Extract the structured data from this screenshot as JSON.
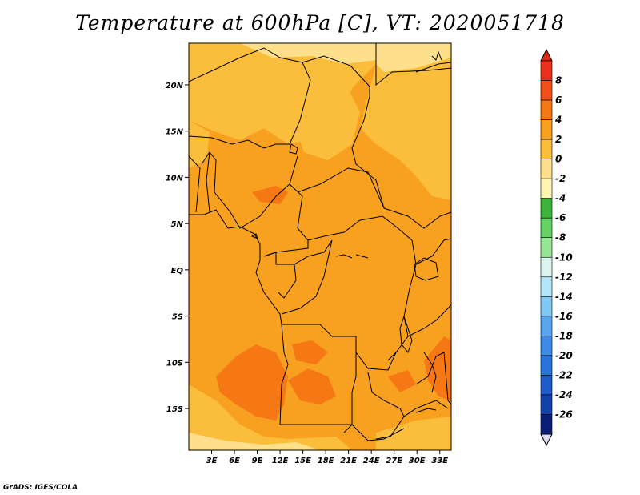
{
  "title": "Temperature at 600hPa [C], VT: 2020051718",
  "credit": "GrADS: IGES/COLA",
  "map": {
    "projection": "latlon",
    "lon_range": [
      0,
      34.5
    ],
    "lat_range": [
      -19.5,
      24.5
    ],
    "lon_ticks": [
      {
        "value": 3,
        "label": "3E"
      },
      {
        "value": 6,
        "label": "6E"
      },
      {
        "value": 9,
        "label": "9E"
      },
      {
        "value": 12,
        "label": "12E"
      },
      {
        "value": 15,
        "label": "15E"
      },
      {
        "value": 18,
        "label": "18E"
      },
      {
        "value": 21,
        "label": "21E"
      },
      {
        "value": 24,
        "label": "24E"
      },
      {
        "value": 27,
        "label": "27E"
      },
      {
        "value": 30,
        "label": "30E"
      },
      {
        "value": 33,
        "label": "33E"
      }
    ],
    "lat_ticks": [
      {
        "value": 20,
        "label": "20N"
      },
      {
        "value": 15,
        "label": "15N"
      },
      {
        "value": 10,
        "label": "10N"
      },
      {
        "value": 5,
        "label": "5N"
      },
      {
        "value": 0,
        "label": "EQ"
      },
      {
        "value": -5,
        "label": "5S"
      },
      {
        "value": -10,
        "label": "10S"
      },
      {
        "value": -15,
        "label": "15S"
      }
    ]
  },
  "colorbar": {
    "levels": [
      {
        "label": "8",
        "color": "#e8321e"
      },
      {
        "label": "6",
        "color": "#f0501a"
      },
      {
        "label": "4",
        "color": "#f57814"
      },
      {
        "label": "2",
        "color": "#f8a020"
      },
      {
        "label": "0",
        "color": "#fbbe3c"
      },
      {
        "label": "-2",
        "color": "#fee08c"
      },
      {
        "label": "-4",
        "color": "#fdf5b4"
      },
      {
        "label": "-6",
        "color": "#3cb43c"
      },
      {
        "label": "-8",
        "color": "#64d264"
      },
      {
        "label": "-10",
        "color": "#96e696"
      },
      {
        "label": "-12",
        "color": "#dcf5f0"
      },
      {
        "label": "-14",
        "color": "#b4e6fa"
      },
      {
        "label": "-16",
        "color": "#82c8f5"
      },
      {
        "label": "-18",
        "color": "#5aa5f0"
      },
      {
        "label": "-20",
        "color": "#3c8ce6"
      },
      {
        "label": "-22",
        "color": "#2873dc"
      },
      {
        "label": "-24",
        "color": "#1e5ac8"
      },
      {
        "label": "-26",
        "color": "#1440aa"
      }
    ],
    "top_color": "#dc2814",
    "bottom_color": "#dcdcf5",
    "last_band_color": "#0a1e78"
  }
}
